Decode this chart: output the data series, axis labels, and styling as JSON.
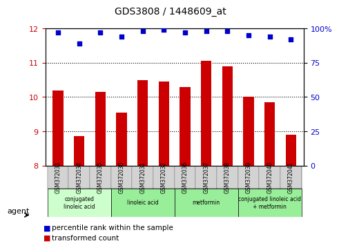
{
  "title": "GDS3808 / 1448609_at",
  "samples": [
    "GSM372033",
    "GSM372034",
    "GSM372035",
    "GSM372030",
    "GSM372031",
    "GSM372032",
    "GSM372036",
    "GSM372037",
    "GSM372038",
    "GSM372039",
    "GSM372040",
    "GSM372041"
  ],
  "bar_values": [
    10.2,
    8.85,
    10.15,
    9.55,
    10.5,
    10.45,
    10.3,
    11.05,
    10.9,
    10.0,
    9.85,
    8.9
  ],
  "scatter_values": [
    97,
    89,
    97,
    94,
    98,
    99,
    97,
    98,
    98,
    95,
    94,
    92
  ],
  "bar_color": "#cc0000",
  "scatter_color": "#0000cc",
  "ylim_left": [
    8,
    12
  ],
  "ylim_right": [
    0,
    100
  ],
  "yticks_left": [
    8,
    9,
    10,
    11,
    12
  ],
  "yticks_right": [
    0,
    25,
    50,
    75,
    100
  ],
  "yticklabels_right": [
    "0",
    "25",
    "50",
    "75",
    "100%"
  ],
  "agent_groups": [
    {
      "label": "conjugated\nlinoleic acid",
      "start": 0,
      "end": 3,
      "color": "#ccffcc"
    },
    {
      "label": "linoleic acid",
      "start": 3,
      "end": 6,
      "color": "#99ee99"
    },
    {
      "label": "metformin",
      "start": 6,
      "end": 9,
      "color": "#99ee99"
    },
    {
      "label": "conjugated linoleic acid\n+ metformin",
      "start": 9,
      "end": 12,
      "color": "#99ee99"
    }
  ],
  "agent_label": "agent",
  "legend_bar_label": "transformed count",
  "legend_scatter_label": "percentile rank within the sample",
  "background_gray": "#d3d3d3",
  "grid_color": "#000000"
}
